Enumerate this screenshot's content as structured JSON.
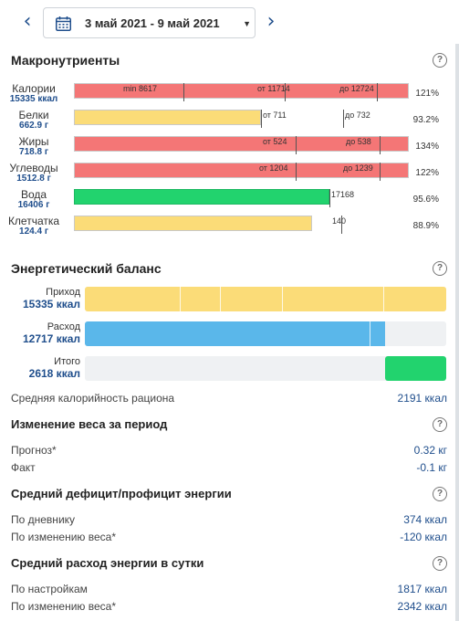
{
  "date_range": "3 май 2021 - 9 май 2021",
  "icons": {
    "prev": "chevron-left-icon",
    "next": "chevron-right-icon",
    "calendar": "calendar-icon",
    "caret": "caret-down-icon",
    "help": "question-circle-icon"
  },
  "colors": {
    "red": "#f47676",
    "yellow": "#fbdc78",
    "green": "#22d36e",
    "blue": "#5ab7ea",
    "accent": "#1f4e8c"
  },
  "macros": {
    "title": "Макронутриенты",
    "help": "?",
    "rows": [
      {
        "name": "Калории",
        "value": "15335 ккал",
        "percent": "121%",
        "marks": [
          "min 8617",
          "от 11714",
          "до 12724"
        ]
      },
      {
        "name": "Белки",
        "value": "662.9 г",
        "percent": "93.2%",
        "marks": [
          "от 711",
          "до 732"
        ]
      },
      {
        "name": "Жиры",
        "value": "718.8 г",
        "percent": "134%",
        "marks": [
          "от 524",
          "до 538"
        ]
      },
      {
        "name": "Углеводы",
        "value": "1512.8 г",
        "percent": "122%",
        "marks": [
          "от 1204",
          "до 1239"
        ]
      },
      {
        "name": "Вода",
        "value": "16406 г",
        "percent": "95.6%",
        "marks": [
          "17168"
        ]
      },
      {
        "name": "Клетчатка",
        "value": "124.4 г",
        "percent": "88.9%",
        "marks": [
          "140"
        ]
      }
    ]
  },
  "balance": {
    "title": "Энергетический баланс",
    "help": "?",
    "income": {
      "label": "Приход",
      "value": "15335 ккал"
    },
    "expense": {
      "label": "Расход",
      "value": "12717 ккал"
    },
    "total": {
      "label": "Итого",
      "value": "2618 ккал"
    },
    "avg_label": "Средняя калорийность рациона",
    "avg_value": "2191 ккал"
  },
  "weight_change": {
    "title": "Изменение веса за период",
    "help": "?",
    "forecast_label": "Прогноз*",
    "forecast_value": "0.32 кг",
    "fact_label": "Факт",
    "fact_value": "-0.1 кг"
  },
  "deficit": {
    "title": "Средний дефицит/профицит энергии",
    "help": "?",
    "diary_label": "По дневнику",
    "diary_value": "374 ккал",
    "weight_label": "По изменению веса*",
    "weight_value": "-120 ккал"
  },
  "expenditure": {
    "title": "Средний расход энергии в сутки",
    "help": "?",
    "settings_label": "По настройкам",
    "settings_value": "1817 ккал",
    "weight_label": "По изменению веса*",
    "weight_value": "2342 ккал"
  }
}
